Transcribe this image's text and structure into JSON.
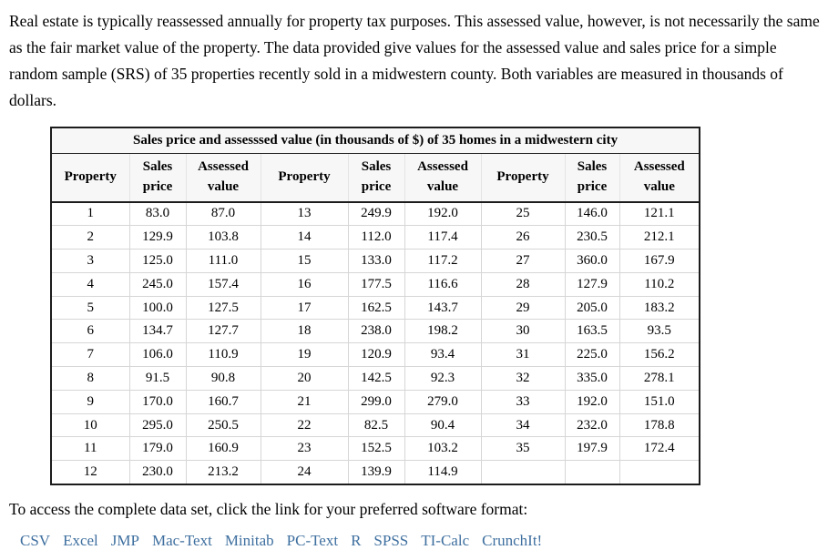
{
  "intro": "Real estate is typically reassessed annually for property tax purposes. This assessed value, however, is not necessarily the same as the fair market value of the property. The data provided give values for the assessed value and sales price for a simple random sample (SRS) of 35 properties recently sold in a midwestern county. Both variables are measured in thousands of dollars.",
  "table": {
    "title": "Sales price and assesssed value (in thousands of $) of 35 homes in a midwestern city",
    "headers": {
      "property": "Property",
      "sales_price": "Sales price",
      "assessed_value": "Assessed value"
    },
    "rows_per_column_group": 12,
    "column_groups": 3,
    "properties": [
      {
        "property": "1",
        "sales_price": "83.0",
        "assessed_value": "87.0"
      },
      {
        "property": "2",
        "sales_price": "129.9",
        "assessed_value": "103.8"
      },
      {
        "property": "3",
        "sales_price": "125.0",
        "assessed_value": "111.0"
      },
      {
        "property": "4",
        "sales_price": "245.0",
        "assessed_value": "157.4"
      },
      {
        "property": "5",
        "sales_price": "100.0",
        "assessed_value": "127.5"
      },
      {
        "property": "6",
        "sales_price": "134.7",
        "assessed_value": "127.7"
      },
      {
        "property": "7",
        "sales_price": "106.0",
        "assessed_value": "110.9"
      },
      {
        "property": "8",
        "sales_price": "91.5",
        "assessed_value": "90.8"
      },
      {
        "property": "9",
        "sales_price": "170.0",
        "assessed_value": "160.7"
      },
      {
        "property": "10",
        "sales_price": "295.0",
        "assessed_value": "250.5"
      },
      {
        "property": "11",
        "sales_price": "179.0",
        "assessed_value": "160.9"
      },
      {
        "property": "12",
        "sales_price": "230.0",
        "assessed_value": "213.2"
      },
      {
        "property": "13",
        "sales_price": "249.9",
        "assessed_value": "192.0"
      },
      {
        "property": "14",
        "sales_price": "112.0",
        "assessed_value": "117.4"
      },
      {
        "property": "15",
        "sales_price": "133.0",
        "assessed_value": "117.2"
      },
      {
        "property": "16",
        "sales_price": "177.5",
        "assessed_value": "116.6"
      },
      {
        "property": "17",
        "sales_price": "162.5",
        "assessed_value": "143.7"
      },
      {
        "property": "18",
        "sales_price": "238.0",
        "assessed_value": "198.2"
      },
      {
        "property": "19",
        "sales_price": "120.9",
        "assessed_value": "93.4"
      },
      {
        "property": "20",
        "sales_price": "142.5",
        "assessed_value": "92.3"
      },
      {
        "property": "21",
        "sales_price": "299.0",
        "assessed_value": "279.0"
      },
      {
        "property": "22",
        "sales_price": "82.5",
        "assessed_value": "90.4"
      },
      {
        "property": "23",
        "sales_price": "152.5",
        "assessed_value": "103.2"
      },
      {
        "property": "24",
        "sales_price": "139.9",
        "assessed_value": "114.9"
      },
      {
        "property": "25",
        "sales_price": "146.0",
        "assessed_value": "121.1"
      },
      {
        "property": "26",
        "sales_price": "230.5",
        "assessed_value": "212.1"
      },
      {
        "property": "27",
        "sales_price": "360.0",
        "assessed_value": "167.9"
      },
      {
        "property": "28",
        "sales_price": "127.9",
        "assessed_value": "110.2"
      },
      {
        "property": "29",
        "sales_price": "205.0",
        "assessed_value": "183.2"
      },
      {
        "property": "30",
        "sales_price": "163.5",
        "assessed_value": "93.5"
      },
      {
        "property": "31",
        "sales_price": "225.0",
        "assessed_value": "156.2"
      },
      {
        "property": "32",
        "sales_price": "335.0",
        "assessed_value": "278.1"
      },
      {
        "property": "33",
        "sales_price": "192.0",
        "assessed_value": "151.0"
      },
      {
        "property": "34",
        "sales_price": "232.0",
        "assessed_value": "178.8"
      },
      {
        "property": "35",
        "sales_price": "197.9",
        "assessed_value": "172.4"
      }
    ]
  },
  "footer": {
    "prompt": "To access the complete data set, click the link for your preferred software format:",
    "links": [
      "CSV",
      "Excel",
      "JMP",
      "Mac-Text",
      "Minitab",
      "PC-Text",
      "R",
      "SPSS",
      "TI-Calc",
      "CrunchIt!"
    ],
    "link_color": "#3E6F9F"
  }
}
